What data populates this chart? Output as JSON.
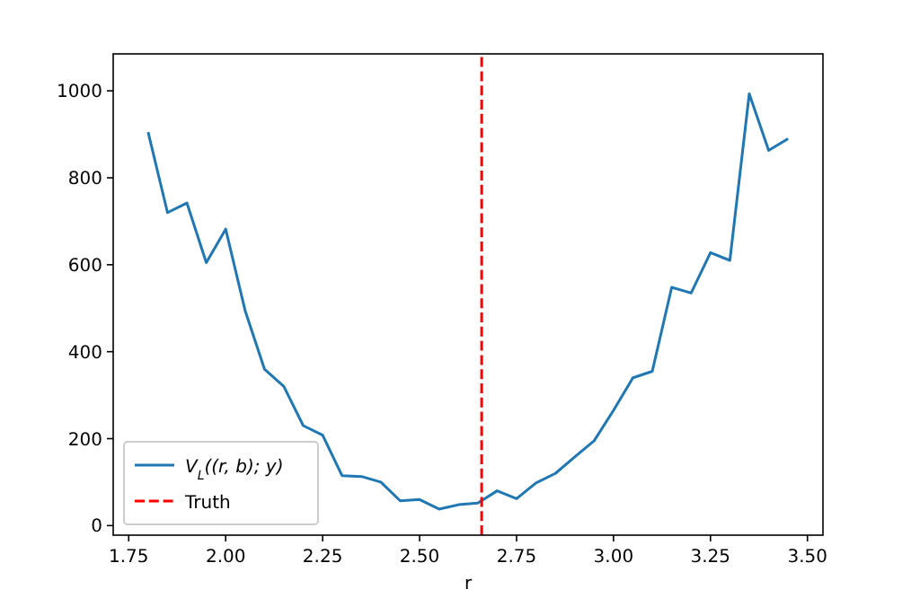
{
  "chart_data": {
    "type": "line",
    "xlabel": "r",
    "xlim": [
      1.71,
      3.54
    ],
    "ylim": [
      -22,
      1085
    ],
    "xticks": [
      {
        "value": 1.75,
        "label": "1.75"
      },
      {
        "value": 2.0,
        "label": "2.00"
      },
      {
        "value": 2.25,
        "label": "2.25"
      },
      {
        "value": 2.5,
        "label": "2.50"
      },
      {
        "value": 2.75,
        "label": "2.75"
      },
      {
        "value": 3.0,
        "label": "3.00"
      },
      {
        "value": 3.25,
        "label": "3.25"
      },
      {
        "value": 3.5,
        "label": "3.50"
      }
    ],
    "yticks": [
      0,
      200,
      400,
      600,
      800,
      1000
    ],
    "legend": "bottom left",
    "grid": false,
    "x": [
      1.8,
      1.85,
      1.9,
      1.95,
      2.0,
      2.05,
      2.1,
      2.15,
      2.2,
      2.25,
      2.3,
      2.35,
      2.4,
      2.45,
      2.5,
      2.55,
      2.6,
      2.65,
      2.7,
      2.75,
      2.8,
      2.85,
      2.9,
      2.95,
      3.0,
      3.05,
      3.1,
      3.15,
      3.2,
      3.25,
      3.3,
      3.35,
      3.4,
      3.45
    ],
    "series": [
      {
        "name": "V$_{L}$((r, b); y)",
        "color": "#1f77b4",
        "values": [
          905,
          720,
          742,
          605,
          682,
          495,
          360,
          320,
          230,
          208,
          115,
          113,
          100,
          57,
          60,
          38,
          48,
          52,
          80,
          62,
          98,
          120,
          158,
          195,
          265,
          340,
          355,
          548,
          535,
          628,
          610,
          993,
          863,
          890
        ]
      },
      {
        "name": "Truth",
        "type": "line",
        "color": "#ff0000",
        "line_style": "dashed",
        "x": [
          2.66,
          2.66
        ],
        "values": [
          -22,
          1085
        ]
      }
    ]
  }
}
